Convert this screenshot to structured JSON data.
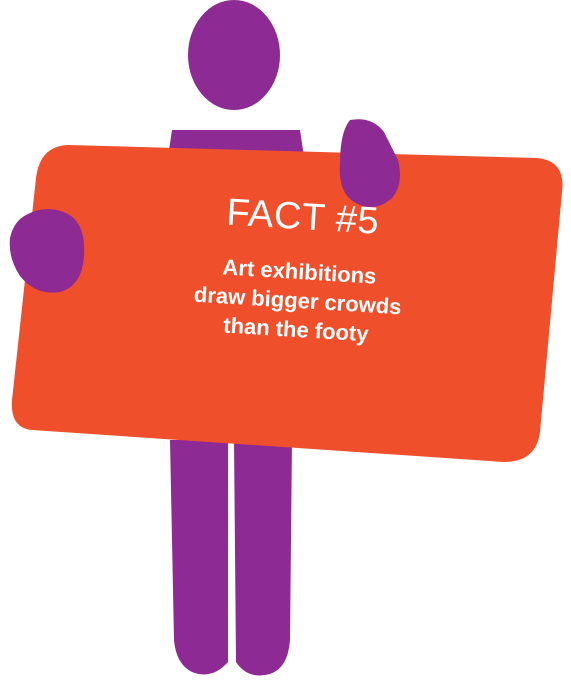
{
  "sign": {
    "title": "FACT #5",
    "lines": [
      "Art exhibitions",
      "draw bigger crowds",
      "than the footy"
    ]
  },
  "colors": {
    "person": "#8e2a93",
    "sign": "#f04f2c",
    "text": "#ffffff",
    "background": "#ffffff"
  }
}
